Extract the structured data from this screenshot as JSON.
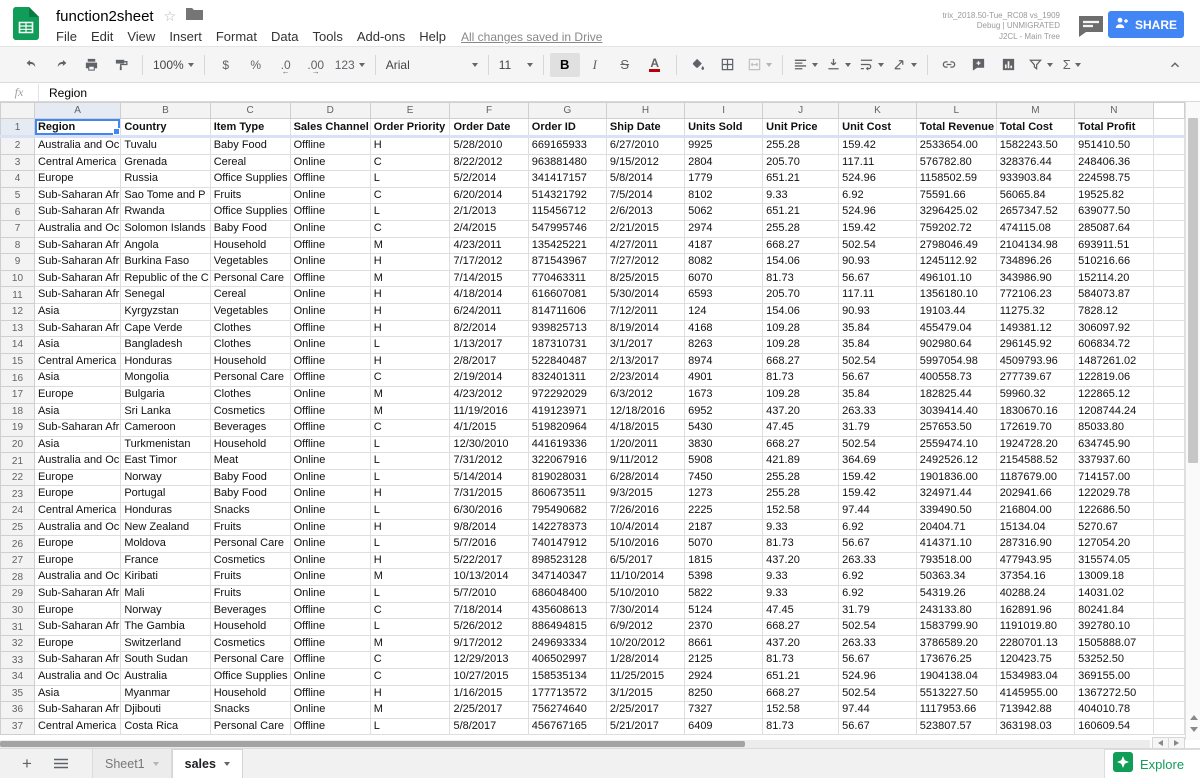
{
  "titlebar": {
    "title": "function2sheet",
    "menus": [
      "File",
      "Edit",
      "View",
      "Insert",
      "Format",
      "Data",
      "Tools",
      "Add-ons",
      "Help"
    ],
    "save_status": "All changes saved in Drive",
    "build_info": [
      "trix_2018.50-Tue_RC08 vs_1909",
      "Debug | UNMIGRATED",
      "J2CL - Main Tree"
    ],
    "share_label": "SHARE"
  },
  "toolbar": {
    "zoom_value": "100%",
    "currency_label": "$",
    "percent_label": "%",
    "decimal_decrease": ".0",
    "decimal_increase": ".00",
    "number_format_label": "123",
    "font_family_value": "Arial",
    "font_size_value": "11",
    "bold_label": "B",
    "italic_label": "I",
    "strikethrough_label": "S",
    "text_color_label": "A",
    "functions_label": "Σ"
  },
  "formula_bar": {
    "prefix": "fx",
    "value": "Region"
  },
  "grid": {
    "selected_cell": "A1",
    "column_letters": [
      "A",
      "B",
      "C",
      "D",
      "E",
      "F",
      "G",
      "H",
      "I",
      "J",
      "K",
      "L",
      "M",
      "N"
    ],
    "header_row": [
      "Region",
      "Country",
      "Item Type",
      "Sales Channel",
      "Order Priority",
      "Order Date",
      "Order ID",
      "Ship Date",
      "Units Sold",
      "Unit Price",
      "Unit Cost",
      "Total Revenue",
      "Total Cost",
      "Total Profit"
    ],
    "first_data_row_number": 2,
    "rows": [
      [
        "Australia and Oc",
        "Tuvalu",
        "Baby Food",
        "Offline",
        "H",
        "5/28/2010",
        "669165933",
        "6/27/2010",
        "9925",
        "255.28",
        "159.42",
        "2533654.00",
        "1582243.50",
        "951410.50"
      ],
      [
        "Central America",
        "Grenada",
        "Cereal",
        "Online",
        "C",
        "8/22/2012",
        "963881480",
        "9/15/2012",
        "2804",
        "205.70",
        "117.11",
        "576782.80",
        "328376.44",
        "248406.36"
      ],
      [
        "Europe",
        "Russia",
        "Office Supplies",
        "Offline",
        "L",
        "5/2/2014",
        "341417157",
        "5/8/2014",
        "1779",
        "651.21",
        "524.96",
        "1158502.59",
        "933903.84",
        "224598.75"
      ],
      [
        "Sub-Saharan Afr",
        "Sao Tome and P",
        "Fruits",
        "Online",
        "C",
        "6/20/2014",
        "514321792",
        "7/5/2014",
        "8102",
        "9.33",
        "6.92",
        "75591.66",
        "56065.84",
        "19525.82"
      ],
      [
        "Sub-Saharan Afr",
        "Rwanda",
        "Office Supplies",
        "Offline",
        "L",
        "2/1/2013",
        "115456712",
        "2/6/2013",
        "5062",
        "651.21",
        "524.96",
        "3296425.02",
        "2657347.52",
        "639077.50"
      ],
      [
        "Australia and Oc",
        "Solomon Islands",
        "Baby Food",
        "Online",
        "C",
        "2/4/2015",
        "547995746",
        "2/21/2015",
        "2974",
        "255.28",
        "159.42",
        "759202.72",
        "474115.08",
        "285087.64"
      ],
      [
        "Sub-Saharan Afr",
        "Angola",
        "Household",
        "Offline",
        "M",
        "4/23/2011",
        "135425221",
        "4/27/2011",
        "4187",
        "668.27",
        "502.54",
        "2798046.49",
        "2104134.98",
        "693911.51"
      ],
      [
        "Sub-Saharan Afr",
        "Burkina Faso",
        "Vegetables",
        "Online",
        "H",
        "7/17/2012",
        "871543967",
        "7/27/2012",
        "8082",
        "154.06",
        "90.93",
        "1245112.92",
        "734896.26",
        "510216.66"
      ],
      [
        "Sub-Saharan Afr",
        "Republic of the C",
        "Personal Care",
        "Offline",
        "M",
        "7/14/2015",
        "770463311",
        "8/25/2015",
        "6070",
        "81.73",
        "56.67",
        "496101.10",
        "343986.90",
        "152114.20"
      ],
      [
        "Sub-Saharan Afr",
        "Senegal",
        "Cereal",
        "Online",
        "H",
        "4/18/2014",
        "616607081",
        "5/30/2014",
        "6593",
        "205.70",
        "117.11",
        "1356180.10",
        "772106.23",
        "584073.87"
      ],
      [
        "Asia",
        "Kyrgyzstan",
        "Vegetables",
        "Online",
        "H",
        "6/24/2011",
        "814711606",
        "7/12/2011",
        "124",
        "154.06",
        "90.93",
        "19103.44",
        "11275.32",
        "7828.12"
      ],
      [
        "Sub-Saharan Afr",
        "Cape Verde",
        "Clothes",
        "Offline",
        "H",
        "8/2/2014",
        "939825713",
        "8/19/2014",
        "4168",
        "109.28",
        "35.84",
        "455479.04",
        "149381.12",
        "306097.92"
      ],
      [
        "Asia",
        "Bangladesh",
        "Clothes",
        "Online",
        "L",
        "1/13/2017",
        "187310731",
        "3/1/2017",
        "8263",
        "109.28",
        "35.84",
        "902980.64",
        "296145.92",
        "606834.72"
      ],
      [
        "Central America",
        "Honduras",
        "Household",
        "Offline",
        "H",
        "2/8/2017",
        "522840487",
        "2/13/2017",
        "8974",
        "668.27",
        "502.54",
        "5997054.98",
        "4509793.96",
        "1487261.02"
      ],
      [
        "Asia",
        "Mongolia",
        "Personal Care",
        "Offline",
        "C",
        "2/19/2014",
        "832401311",
        "2/23/2014",
        "4901",
        "81.73",
        "56.67",
        "400558.73",
        "277739.67",
        "122819.06"
      ],
      [
        "Europe",
        "Bulgaria",
        "Clothes",
        "Online",
        "M",
        "4/23/2012",
        "972292029",
        "6/3/2012",
        "1673",
        "109.28",
        "35.84",
        "182825.44",
        "59960.32",
        "122865.12"
      ],
      [
        "Asia",
        "Sri Lanka",
        "Cosmetics",
        "Offline",
        "M",
        "11/19/2016",
        "419123971",
        "12/18/2016",
        "6952",
        "437.20",
        "263.33",
        "3039414.40",
        "1830670.16",
        "1208744.24"
      ],
      [
        "Sub-Saharan Afr",
        "Cameroon",
        "Beverages",
        "Offline",
        "C",
        "4/1/2015",
        "519820964",
        "4/18/2015",
        "5430",
        "47.45",
        "31.79",
        "257653.50",
        "172619.70",
        "85033.80"
      ],
      [
        "Asia",
        "Turkmenistan",
        "Household",
        "Offline",
        "L",
        "12/30/2010",
        "441619336",
        "1/20/2011",
        "3830",
        "668.27",
        "502.54",
        "2559474.10",
        "1924728.20",
        "634745.90"
      ],
      [
        "Australia and Oc",
        "East Timor",
        "Meat",
        "Online",
        "L",
        "7/31/2012",
        "322067916",
        "9/11/2012",
        "5908",
        "421.89",
        "364.69",
        "2492526.12",
        "2154588.52",
        "337937.60"
      ],
      [
        "Europe",
        "Norway",
        "Baby Food",
        "Online",
        "L",
        "5/14/2014",
        "819028031",
        "6/28/2014",
        "7450",
        "255.28",
        "159.42",
        "1901836.00",
        "1187679.00",
        "714157.00"
      ],
      [
        "Europe",
        "Portugal",
        "Baby Food",
        "Online",
        "H",
        "7/31/2015",
        "860673511",
        "9/3/2015",
        "1273",
        "255.28",
        "159.42",
        "324971.44",
        "202941.66",
        "122029.78"
      ],
      [
        "Central America",
        "Honduras",
        "Snacks",
        "Online",
        "L",
        "6/30/2016",
        "795490682",
        "7/26/2016",
        "2225",
        "152.58",
        "97.44",
        "339490.50",
        "216804.00",
        "122686.50"
      ],
      [
        "Australia and Oc",
        "New Zealand",
        "Fruits",
        "Online",
        "H",
        "9/8/2014",
        "142278373",
        "10/4/2014",
        "2187",
        "9.33",
        "6.92",
        "20404.71",
        "15134.04",
        "5270.67"
      ],
      [
        "Europe",
        "Moldova",
        "Personal Care",
        "Online",
        "L",
        "5/7/2016",
        "740147912",
        "5/10/2016",
        "5070",
        "81.73",
        "56.67",
        "414371.10",
        "287316.90",
        "127054.20"
      ],
      [
        "Europe",
        "France",
        "Cosmetics",
        "Online",
        "H",
        "5/22/2017",
        "898523128",
        "6/5/2017",
        "1815",
        "437.20",
        "263.33",
        "793518.00",
        "477943.95",
        "315574.05"
      ],
      [
        "Australia and Oc",
        "Kiribati",
        "Fruits",
        "Online",
        "M",
        "10/13/2014",
        "347140347",
        "11/10/2014",
        "5398",
        "9.33",
        "6.92",
        "50363.34",
        "37354.16",
        "13009.18"
      ],
      [
        "Sub-Saharan Afr",
        "Mali",
        "Fruits",
        "Online",
        "L",
        "5/7/2010",
        "686048400",
        "5/10/2010",
        "5822",
        "9.33",
        "6.92",
        "54319.26",
        "40288.24",
        "14031.02"
      ],
      [
        "Europe",
        "Norway",
        "Beverages",
        "Offline",
        "C",
        "7/18/2014",
        "435608613",
        "7/30/2014",
        "5124",
        "47.45",
        "31.79",
        "243133.80",
        "162891.96",
        "80241.84"
      ],
      [
        "Sub-Saharan Afr",
        "The Gambia",
        "Household",
        "Offline",
        "L",
        "5/26/2012",
        "886494815",
        "6/9/2012",
        "2370",
        "668.27",
        "502.54",
        "1583799.90",
        "1191019.80",
        "392780.10"
      ],
      [
        "Europe",
        "Switzerland",
        "Cosmetics",
        "Offline",
        "M",
        "9/17/2012",
        "249693334",
        "10/20/2012",
        "8661",
        "437.20",
        "263.33",
        "3786589.20",
        "2280701.13",
        "1505888.07"
      ],
      [
        "Sub-Saharan Afr",
        "South Sudan",
        "Personal Care",
        "Offline",
        "C",
        "12/29/2013",
        "406502997",
        "1/28/2014",
        "2125",
        "81.73",
        "56.67",
        "173676.25",
        "120423.75",
        "53252.50"
      ],
      [
        "Australia and Oc",
        "Australia",
        "Office Supplies",
        "Online",
        "C",
        "10/27/2015",
        "158535134",
        "11/25/2015",
        "2924",
        "651.21",
        "524.96",
        "1904138.04",
        "1534983.04",
        "369155.00"
      ],
      [
        "Asia",
        "Myanmar",
        "Household",
        "Offline",
        "H",
        "1/16/2015",
        "177713572",
        "3/1/2015",
        "8250",
        "668.27",
        "502.54",
        "5513227.50",
        "4145955.00",
        "1367272.50"
      ],
      [
        "Sub-Saharan Afr",
        "Djibouti",
        "Snacks",
        "Online",
        "M",
        "2/25/2017",
        "756274640",
        "2/25/2017",
        "7327",
        "152.58",
        "97.44",
        "1117953.66",
        "713942.88",
        "404010.78"
      ],
      [
        "Central America",
        "Costa Rica",
        "Personal Care",
        "Offline",
        "L",
        "5/8/2017",
        "456767165",
        "5/21/2017",
        "6409",
        "81.73",
        "56.67",
        "523807.57",
        "363198.03",
        "160609.54"
      ]
    ]
  },
  "sheet_tabs": {
    "add_label": "+",
    "tabs": [
      {
        "label": "Sheet1",
        "active": false
      },
      {
        "label": "sales",
        "active": true
      }
    ]
  },
  "explore": {
    "label": "Explore"
  },
  "colors": {
    "accent_blue": "#4285f4",
    "sheets_green": "#0f9d58",
    "explore_green": "#0f9d58",
    "text_color_swatch": "#b3000c",
    "freeze_band": "#d9e2f4"
  }
}
